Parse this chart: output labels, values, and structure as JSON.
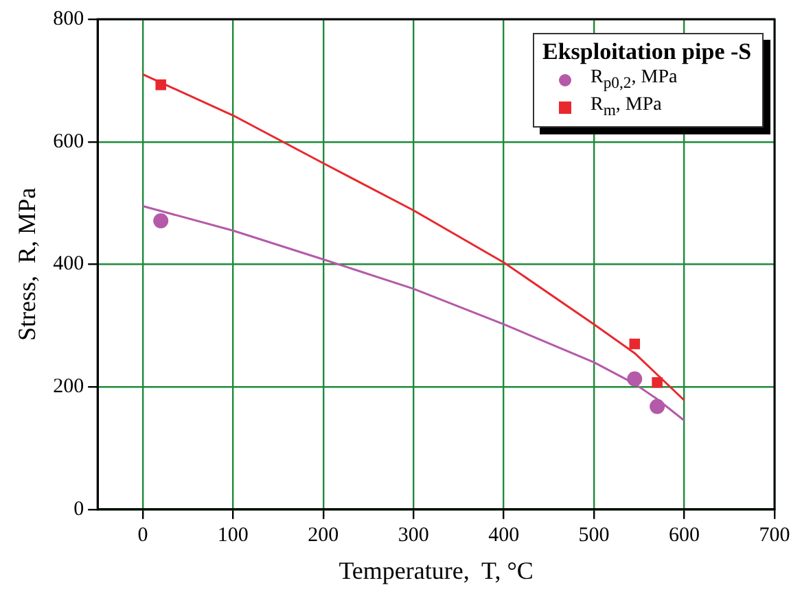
{
  "chart_data": {
    "type": "scatter",
    "xlabel": "Temperature,  T, °C",
    "ylabel": "Stress,  R, MPa",
    "legend_title": "Eksploitation pipe  -S",
    "xlim": [
      -50,
      700
    ],
    "xticks": [
      0,
      100,
      200,
      300,
      400,
      500,
      600,
      700
    ],
    "ylim": [
      0,
      800
    ],
    "yticks": [
      0,
      200,
      400,
      600,
      800
    ],
    "grid": true,
    "legend": "top right",
    "series": [
      {
        "type": "line",
        "color": "#e8282e",
        "marker": "none",
        "x": [
          0,
          100,
          200,
          300,
          400,
          500,
          545,
          570,
          600
        ],
        "values": [
          710,
          643,
          565,
          488,
          403,
          302,
          255,
          220,
          178
        ]
      },
      {
        "type": "line",
        "color": "#b45aa8",
        "marker": "none",
        "x": [
          0,
          100,
          200,
          300,
          400,
          500,
          545,
          570,
          600
        ],
        "values": [
          495,
          455,
          408,
          360,
          302,
          240,
          205,
          180,
          145
        ]
      },
      {
        "name": "R$_{p0,2}$,  MPa",
        "color": "#b45aa8",
        "marker": "circle",
        "x": [
          20,
          545,
          570
        ],
        "values": [
          471,
          213,
          168
        ]
      },
      {
        "name": "R$_{m}$,   MPa",
        "color": "#e8282e",
        "marker": "square",
        "x": [
          20,
          545,
          570
        ],
        "values": [
          693,
          270,
          207
        ]
      }
    ]
  }
}
